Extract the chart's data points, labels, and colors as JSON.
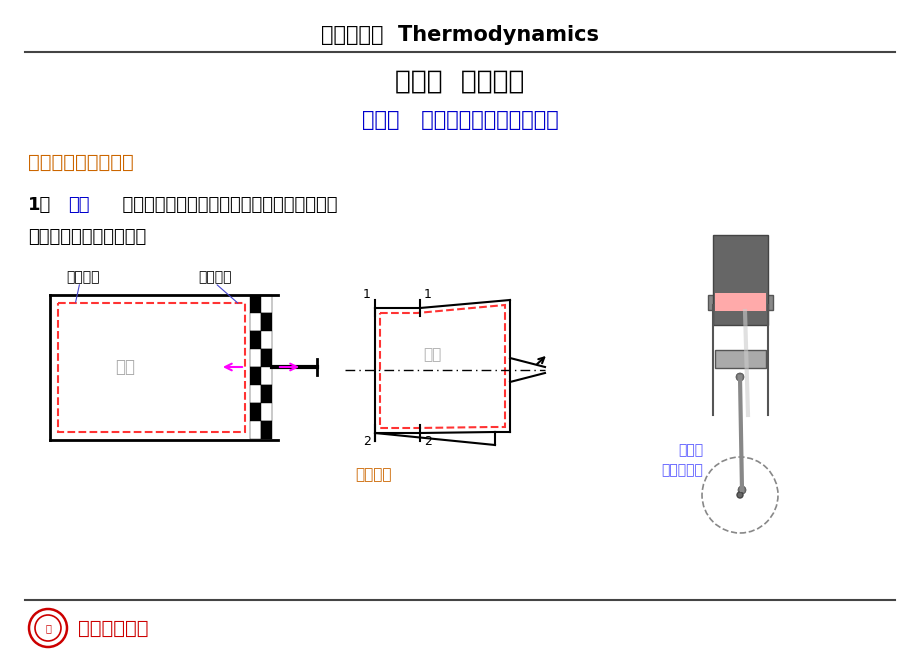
{
  "title_line1": "工程热力学  Thermodynamics",
  "title_line2": "第一章  基本概念",
  "subtitle": "第一节   热力系、状态与状态参数",
  "section_title": "一、热力系统与工质",
  "body_line1_black": "1、",
  "body_line1_blue": "定义",
  "body_line1_rest": "  人为划定的一定范围内的研究对象称为热力系",
  "body_line2": "统，简称热力系或系统。",
  "label_fixed": "固定边界",
  "label_moving": "移动边界",
  "label_system1": "系统",
  "label_system2": "系统",
  "label_reli": "热力系统",
  "label_compressor_1": "活塞式",
  "label_compressor_2": "制冷压缩机",
  "footer_text": "西安交通大学",
  "bg_color": "#ffffff",
  "title_color": "#000000",
  "subtitle_color": "#0000cc",
  "section_color": "#cc6600",
  "body_color": "#000000",
  "body_blue_color": "#0000cc",
  "footer_color": "#cc0000",
  "reli_color": "#cc6600",
  "diagram_color": "#000000",
  "piston_hatch_color": "#333333",
  "arrow_magenta": "#ff00ff",
  "arrow_orange": "#ff8800",
  "system_gray": "#999999",
  "compressor_label_color": "#5555ff"
}
